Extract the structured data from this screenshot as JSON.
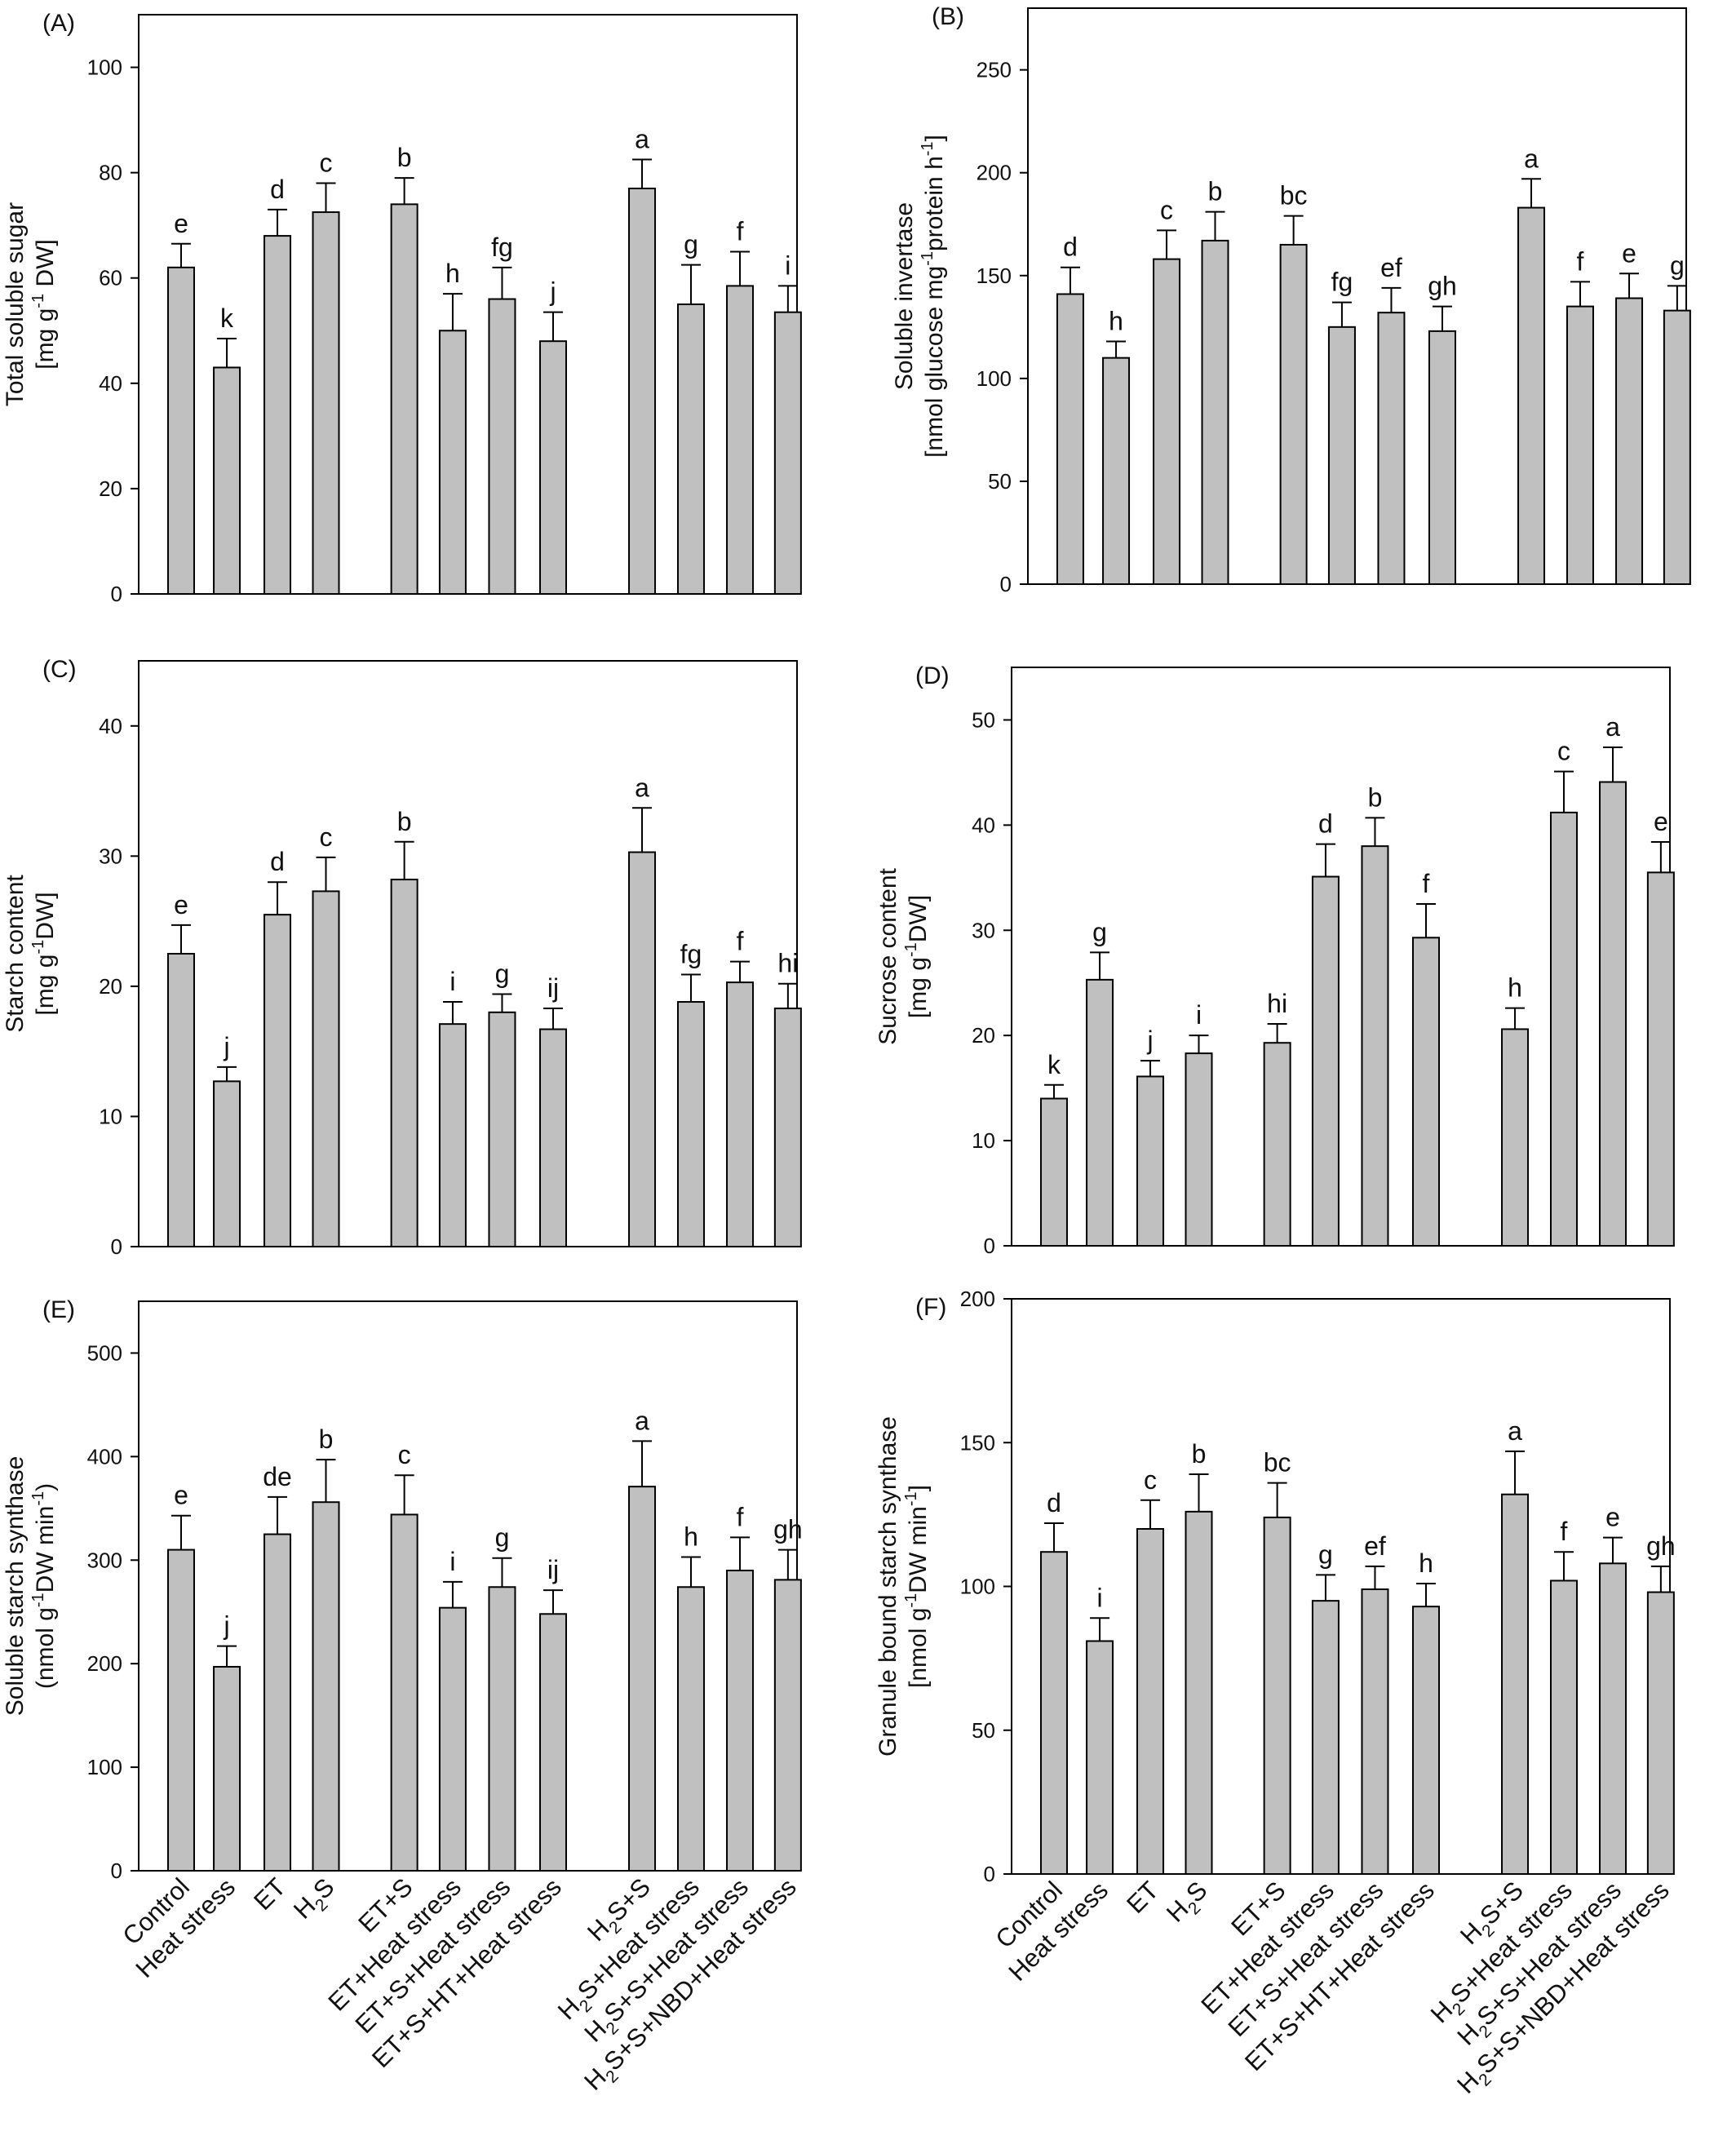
{
  "categories": [
    "Control",
    "Heat stress",
    "ET",
    "H2S",
    "ET+S",
    "ET+Heat stress",
    "ET+S+Heat stress",
    "ET+S+HT+Heat stress",
    "H2S+S",
    "H2S+Heat stress",
    "H2S+S+Heat stress",
    "H2S+S+NBD+Heat stress"
  ],
  "chart_data": [
    {
      "type": "bar",
      "panel": "(A)",
      "ylabel": [
        "Total soluble sugar",
        "[mg g-1 DW]"
      ],
      "ylim": [
        0,
        110
      ],
      "yticks": [
        0,
        20,
        40,
        60,
        80,
        100
      ],
      "values": [
        62,
        43,
        68,
        72.5,
        74,
        50,
        56,
        48,
        77,
        55,
        58.5,
        53.5
      ],
      "errors": [
        4.5,
        5.5,
        5,
        5.5,
        5,
        7,
        6,
        5.5,
        5.5,
        7.5,
        6.5,
        5
      ],
      "letters": [
        "e",
        "k",
        "d",
        "c",
        "b",
        "h",
        "fg",
        "j",
        "a",
        "g",
        "f",
        "i"
      ],
      "bar_color": "#c0c0c0"
    },
    {
      "type": "bar",
      "panel": "(B)",
      "ylabel": [
        "Soluble invertase",
        "[nmol glucose mg-1protein h-1]"
      ],
      "ylim": [
        0,
        280
      ],
      "yticks": [
        0,
        50,
        100,
        150,
        200,
        250
      ],
      "values": [
        141,
        110,
        158,
        167,
        165,
        125,
        132,
        123,
        183,
        135,
        139,
        133
      ],
      "errors": [
        13,
        8,
        14,
        14,
        14,
        12,
        12,
        12,
        14,
        12,
        12,
        12
      ],
      "letters": [
        "d",
        "h",
        "c",
        "b",
        "bc",
        "fg",
        "ef",
        "gh",
        "a",
        "f",
        "e",
        "g"
      ],
      "bar_color": "#c0c0c0"
    },
    {
      "type": "bar",
      "panel": "(C)",
      "ylabel": [
        "Starch content",
        "[mg g-1DW]"
      ],
      "ylim": [
        0,
        45
      ],
      "yticks": [
        0,
        10,
        20,
        30,
        40
      ],
      "values": [
        22.5,
        12.7,
        25.5,
        27.3,
        28.2,
        17.1,
        18,
        16.7,
        30.3,
        18.8,
        20.3,
        18.3
      ],
      "errors": [
        2.2,
        1.1,
        2.5,
        2.6,
        2.9,
        1.7,
        1.4,
        1.6,
        3.4,
        2.1,
        1.6,
        1.9
      ],
      "letters": [
        "e",
        "j",
        "d",
        "c",
        "b",
        "i",
        "g",
        "ij",
        "a",
        "fg",
        "f",
        "hi"
      ],
      "bar_color": "#c0c0c0"
    },
    {
      "type": "bar",
      "panel": "(D)",
      "ylabel": [
        "Sucrose content",
        "[mg g-1DW]"
      ],
      "ylim": [
        0,
        55
      ],
      "yticks": [
        0,
        10,
        20,
        30,
        40,
        50
      ],
      "values": [
        14,
        25.3,
        16.1,
        18.3,
        19.3,
        35.1,
        38,
        29.3,
        20.6,
        41.2,
        44.1,
        35.5
      ],
      "errors": [
        1.3,
        2.6,
        1.5,
        1.7,
        1.8,
        3.1,
        2.7,
        3.2,
        2,
        3.9,
        3.3,
        2.9
      ],
      "letters": [
        "k",
        "g",
        "j",
        "i",
        "hi",
        "d",
        "b",
        "f",
        "h",
        "c",
        "a",
        "e"
      ],
      "bar_color": "#c0c0c0"
    },
    {
      "type": "bar",
      "panel": "(E)",
      "ylabel": [
        "Soluble starch synthase",
        "(nmol g-1DW min-1)"
      ],
      "ylim": [
        0,
        550
      ],
      "yticks": [
        0,
        100,
        200,
        300,
        400,
        500
      ],
      "values": [
        310,
        197,
        325,
        356,
        344,
        254,
        274,
        248,
        371,
        274,
        290,
        281
      ],
      "errors": [
        33,
        20,
        36,
        41,
        38,
        25,
        28,
        23,
        44,
        29,
        32,
        29
      ],
      "letters": [
        "e",
        "j",
        "de",
        "b",
        "c",
        "i",
        "g",
        "ij",
        "a",
        "h",
        "f",
        "gh"
      ],
      "bar_color": "#c0c0c0"
    },
    {
      "type": "bar",
      "panel": "(F)",
      "ylabel": [
        "Granule bound starch synthase",
        "[nmol g-1DW min-1]"
      ],
      "ylim": [
        0,
        200
      ],
      "yticks": [
        0,
        50,
        100,
        150,
        200
      ],
      "values": [
        112,
        81,
        120,
        126,
        124,
        95,
        99,
        93,
        132,
        102,
        108,
        98
      ],
      "errors": [
        10,
        8,
        10,
        13,
        12,
        9,
        8,
        8,
        15,
        10,
        9,
        9
      ],
      "letters": [
        "d",
        "i",
        "c",
        "b",
        "bc",
        "g",
        "ef",
        "h",
        "a",
        "f",
        "e",
        "gh"
      ],
      "bar_color": "#c0c0c0"
    }
  ]
}
